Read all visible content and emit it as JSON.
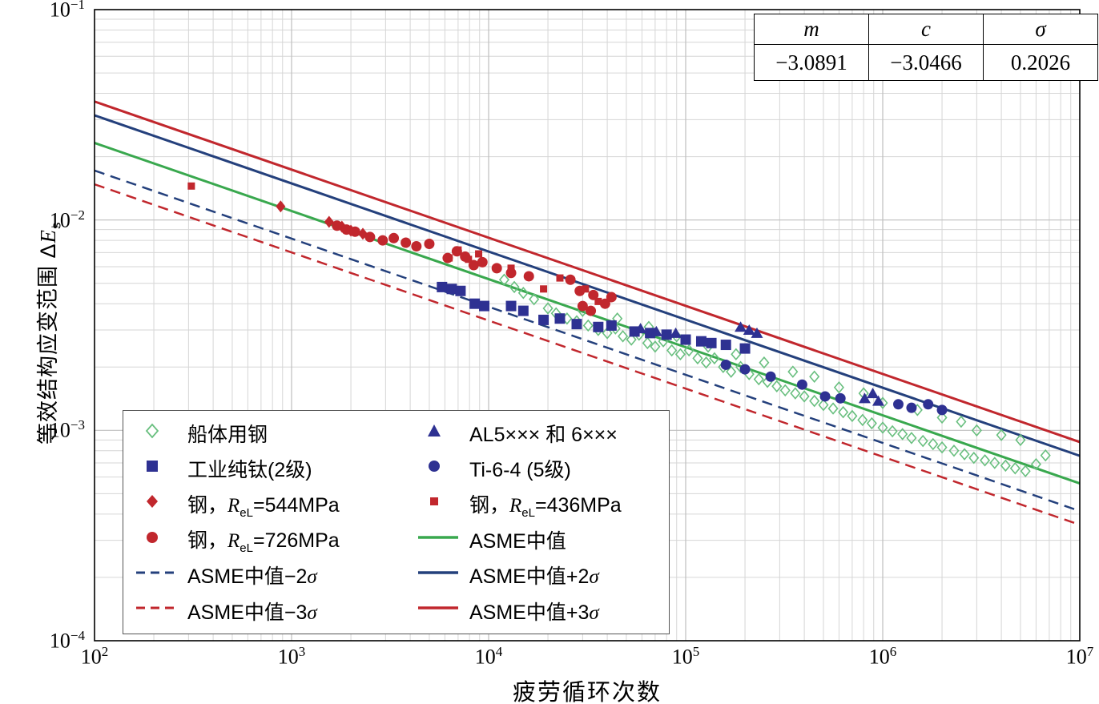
{
  "axes": {
    "x_title": "疲劳循环次数",
    "y_title_main": "等效结构应变范围 Δ",
    "y_title_sym": "E",
    "y_title_sub": "s"
  },
  "param_table": {
    "headers": [
      "m",
      "c",
      "σ"
    ],
    "values": [
      "−3.0891",
      "−3.0466",
      "0.2026"
    ]
  },
  "legend": {
    "columns": [
      [
        {
          "name": "hull-steel",
          "marker": "diamond-open",
          "color": "#69bf7f",
          "parts": [
            [
              "t",
              "船体用钢"
            ]
          ]
        },
        {
          "name": "cp-titanium-grade2",
          "marker": "square",
          "color": "#2e3192",
          "parts": [
            [
              "t",
              "工业纯钛(2级)"
            ]
          ]
        },
        {
          "name": "steel-544",
          "marker": "diamond",
          "color": "#c1272d",
          "parts": [
            [
              "t",
              "钢，"
            ],
            [
              "i",
              "R"
            ],
            [
              "s",
              "eL"
            ],
            [
              "t",
              "=544MPa"
            ]
          ]
        },
        {
          "name": "steel-726",
          "marker": "circle",
          "color": "#c1272d",
          "parts": [
            [
              "t",
              "钢，"
            ],
            [
              "i",
              "R"
            ],
            [
              "s",
              "eL"
            ],
            [
              "t",
              "=726MPa"
            ]
          ]
        },
        {
          "name": "asme-mean-minus-2sigma",
          "marker": "line-dashed",
          "color": "#24407c",
          "parts": [
            [
              "t",
              "ASME中值−2"
            ],
            [
              "i",
              "σ"
            ]
          ]
        },
        {
          "name": "asme-mean-minus-3sigma",
          "marker": "line-dashed",
          "color": "#c1272d",
          "parts": [
            [
              "t",
              "ASME中值−3"
            ],
            [
              "i",
              "σ"
            ]
          ]
        }
      ],
      [
        {
          "name": "al-5xxx-6xxx",
          "marker": "triangle",
          "color": "#2e3192",
          "parts": [
            [
              "t",
              "AL5××× 和 6×××"
            ]
          ]
        },
        {
          "name": "ti-6-4-grade5",
          "marker": "circle",
          "color": "#2e3192",
          "parts": [
            [
              "t",
              "Ti-6-4 (5级)"
            ]
          ]
        },
        {
          "name": "steel-436",
          "marker": "square-small",
          "color": "#c1272d",
          "parts": [
            [
              "t",
              "钢，"
            ],
            [
              "i",
              "R"
            ],
            [
              "s",
              "eL"
            ],
            [
              "t",
              "=436MPa"
            ]
          ]
        },
        {
          "name": "asme-mean",
          "marker": "line-solid",
          "color": "#39a84e",
          "parts": [
            [
              "t",
              "ASME中值"
            ]
          ]
        },
        {
          "name": "asme-mean-plus-2sigma",
          "marker": "line-solid",
          "color": "#24407c",
          "parts": [
            [
              "t",
              "ASME中值+2"
            ],
            [
              "i",
              "σ"
            ]
          ]
        },
        {
          "name": "asme-mean-plus-3sigma",
          "marker": "line-solid",
          "color": "#c1272d",
          "parts": [
            [
              "t",
              "ASME中值+3"
            ],
            [
              "i",
              "σ"
            ]
          ]
        }
      ]
    ]
  },
  "chart_data": {
    "type": "scatter",
    "title": "",
    "xlabel": "疲劳循环次数",
    "ylabel": "等效结构应变范围 ΔEs",
    "x_scale": "log",
    "y_scale": "log",
    "xlim": [
      100,
      10000000
    ],
    "ylim": [
      0.0001,
      0.1
    ],
    "grid": true,
    "x_tick_exponents": [
      2,
      3,
      4,
      5,
      6,
      7
    ],
    "y_tick_exponents": [
      -1,
      -2,
      -3,
      -4
    ],
    "fit": {
      "m": -3.0891,
      "c": -3.0466,
      "sigma": 0.2026
    },
    "lines": [
      {
        "key": "asme-mean",
        "name": "ASME中值",
        "k": 0,
        "color": "#39a84e",
        "dash": false,
        "width": 3
      },
      {
        "key": "asme-plus-2sigma",
        "name": "ASME中值+2σ",
        "k": 2,
        "color": "#24407c",
        "dash": false,
        "width": 3
      },
      {
        "key": "asme-plus-3sigma",
        "name": "ASME中值+3σ",
        "k": 3,
        "color": "#c1272d",
        "dash": false,
        "width": 3
      },
      {
        "key": "asme-minus-2sigma",
        "name": "ASME中值−2σ",
        "k": -2,
        "color": "#24407c",
        "dash": true,
        "width": 2.5
      },
      {
        "key": "asme-minus-3sigma",
        "name": "ASME中值−3σ",
        "k": -3,
        "color": "#c1272d",
        "dash": true,
        "width": 2.5
      }
    ],
    "series": [
      {
        "key": "hull-steel",
        "name": "船体用钢",
        "symbol": "diamond-open",
        "color": "#69bf7f",
        "points": [
          [
            12000,
            0.0052
          ],
          [
            13500,
            0.0048
          ],
          [
            15000,
            0.0045
          ],
          [
            17000,
            0.0042
          ],
          [
            20000,
            0.0038
          ],
          [
            22000,
            0.0036
          ],
          [
            25000,
            0.0034
          ],
          [
            28000,
            0.0033
          ],
          [
            32000,
            0.00315
          ],
          [
            36000,
            0.003
          ],
          [
            40000,
            0.0029
          ],
          [
            44000,
            0.00305
          ],
          [
            48000,
            0.0028
          ],
          [
            53000,
            0.0027
          ],
          [
            58000,
            0.00285
          ],
          [
            64000,
            0.0026
          ],
          [
            70000,
            0.0025
          ],
          [
            77000,
            0.00265
          ],
          [
            85000,
            0.0024
          ],
          [
            94000,
            0.0023
          ],
          [
            104000,
            0.0024
          ],
          [
            115000,
            0.0022
          ],
          [
            127000,
            0.0021
          ],
          [
            140000,
            0.0022
          ],
          [
            155000,
            0.002
          ],
          [
            170000,
            0.0019
          ],
          [
            190000,
            0.002
          ],
          [
            210000,
            0.00185
          ],
          [
            235000,
            0.00175
          ],
          [
            260000,
            0.0017
          ],
          [
            290000,
            0.00162
          ],
          [
            320000,
            0.00155
          ],
          [
            360000,
            0.0015
          ],
          [
            400000,
            0.00145
          ],
          [
            450000,
            0.00138
          ],
          [
            500000,
            0.00132
          ],
          [
            560000,
            0.00127
          ],
          [
            630000,
            0.00122
          ],
          [
            700000,
            0.00117
          ],
          [
            790000,
            0.00112
          ],
          [
            880000,
            0.00108
          ],
          [
            1000000,
            0.00103
          ],
          [
            1120000,
            0.00099
          ],
          [
            1260000,
            0.00096
          ],
          [
            1400000,
            0.00092
          ],
          [
            1600000,
            0.00089
          ],
          [
            1800000,
            0.00086
          ],
          [
            2000000,
            0.00083
          ],
          [
            2300000,
            0.0008
          ],
          [
            2600000,
            0.00077
          ],
          [
            2900000,
            0.00074
          ],
          [
            3300000,
            0.00072
          ],
          [
            3700000,
            0.0007
          ],
          [
            4200000,
            0.00068
          ],
          [
            4700000,
            0.00066
          ],
          [
            5300000,
            0.00064
          ],
          [
            6000000,
            0.00069
          ],
          [
            6700000,
            0.00076
          ],
          [
            5000000,
            0.0009
          ],
          [
            4000000,
            0.00095
          ],
          [
            3000000,
            0.001
          ],
          [
            2500000,
            0.0011
          ],
          [
            2000000,
            0.00115
          ],
          [
            1500000,
            0.00125
          ],
          [
            1000000,
            0.00135
          ],
          [
            800000,
            0.0015
          ],
          [
            600000,
            0.0016
          ],
          [
            450000,
            0.0018
          ],
          [
            350000,
            0.0019
          ],
          [
            250000,
            0.0021
          ],
          [
            180000,
            0.0023
          ],
          [
            130000,
            0.0025
          ],
          [
            90000,
            0.0028
          ],
          [
            65000,
            0.0031
          ],
          [
            45000,
            0.0034
          ],
          [
            30000,
            0.0037
          ]
        ]
      },
      {
        "key": "ti-grade2",
        "name": "工业纯钛(2级)",
        "symbol": "square",
        "color": "#2e3192",
        "points": [
          [
            5800,
            0.0048
          ],
          [
            6500,
            0.0047
          ],
          [
            7200,
            0.0046
          ],
          [
            8500,
            0.004
          ],
          [
            9500,
            0.0039
          ],
          [
            13000,
            0.0039
          ],
          [
            15000,
            0.0037
          ],
          [
            19000,
            0.00335
          ],
          [
            23000,
            0.0034
          ],
          [
            28000,
            0.0032
          ],
          [
            36000,
            0.0031
          ],
          [
            42000,
            0.00315
          ],
          [
            55000,
            0.00295
          ],
          [
            66000,
            0.0029
          ],
          [
            80000,
            0.00285
          ],
          [
            100000,
            0.0027
          ],
          [
            120000,
            0.00265
          ],
          [
            135000,
            0.0026
          ],
          [
            160000,
            0.00255
          ],
          [
            200000,
            0.00245
          ]
        ]
      },
      {
        "key": "steel-544",
        "name": "钢，ReL=544MPa",
        "symbol": "diamond",
        "color": "#c1272d",
        "points": [
          [
            880,
            0.0116
          ],
          [
            1550,
            0.0098
          ],
          [
            1800,
            0.0093
          ],
          [
            2000,
            0.0089
          ],
          [
            2300,
            0.0086
          ]
        ]
      },
      {
        "key": "steel-726",
        "name": "钢，ReL=726MPa",
        "symbol": "circle",
        "color": "#c1272d",
        "points": [
          [
            1700,
            0.0094
          ],
          [
            1900,
            0.009
          ],
          [
            2100,
            0.0088
          ],
          [
            2500,
            0.0083
          ],
          [
            2900,
            0.008
          ],
          [
            3300,
            0.0082
          ],
          [
            3800,
            0.0078
          ],
          [
            4300,
            0.0075
          ],
          [
            5000,
            0.0077
          ],
          [
            6200,
            0.0066
          ],
          [
            6900,
            0.0071
          ],
          [
            7600,
            0.0067
          ],
          [
            8400,
            0.0061
          ],
          [
            9300,
            0.0063
          ],
          [
            11000,
            0.0059
          ],
          [
            13000,
            0.0056
          ],
          [
            16000,
            0.0054
          ],
          [
            26000,
            0.0052
          ],
          [
            29000,
            0.0046
          ],
          [
            34000,
            0.0044
          ],
          [
            39000,
            0.004
          ],
          [
            42000,
            0.0043
          ],
          [
            30000,
            0.0039
          ],
          [
            33000,
            0.0037
          ]
        ]
      },
      {
        "key": "al-5xxx-6xxx",
        "name": "AL5××× 和 6×××",
        "symbol": "triangle",
        "color": "#2e3192",
        "points": [
          [
            59000,
            0.00305
          ],
          [
            71000,
            0.00295
          ],
          [
            89000,
            0.0029
          ],
          [
            190000,
            0.0031
          ],
          [
            210000,
            0.003
          ],
          [
            230000,
            0.0029
          ],
          [
            810000,
            0.00142
          ],
          [
            890000,
            0.0015
          ],
          [
            950000,
            0.00138
          ]
        ]
      },
      {
        "key": "ti-6-4",
        "name": "Ti-6-4 (5级)",
        "symbol": "circle",
        "color": "#2e3192",
        "points": [
          [
            160000,
            0.00205
          ],
          [
            200000,
            0.00195
          ],
          [
            270000,
            0.0018
          ],
          [
            390000,
            0.00165
          ],
          [
            510000,
            0.00145
          ],
          [
            610000,
            0.00142
          ],
          [
            1200000,
            0.00133
          ],
          [
            1400000,
            0.00128
          ],
          [
            1700000,
            0.00133
          ],
          [
            2000000,
            0.00125
          ]
        ]
      },
      {
        "key": "steel-436",
        "name": "钢，ReL=436MPa",
        "symbol": "square-small",
        "color": "#c1272d",
        "points": [
          [
            310,
            0.0145
          ],
          [
            6300,
            0.0066
          ],
          [
            7000,
            0.0072
          ],
          [
            7900,
            0.0065
          ],
          [
            8900,
            0.0069
          ],
          [
            13000,
            0.0059
          ],
          [
            19000,
            0.0047
          ],
          [
            23000,
            0.0053
          ],
          [
            31000,
            0.0047
          ],
          [
            36000,
            0.0041
          ]
        ]
      }
    ]
  }
}
